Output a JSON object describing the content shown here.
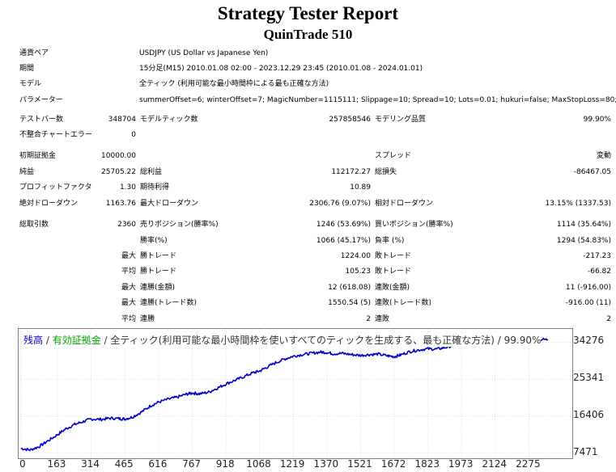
{
  "title": "Strategy Tester Report",
  "subtitle": "QuinTrade 510",
  "info": [
    {
      "label": "通貨ペア",
      "value": "USDJPY (US Dollar vs Japanese Yen)"
    },
    {
      "label": "期間",
      "value": "15分足(M15) 2010.01.08 02:00 - 2023.12.29 23:45 (2010.01.08 - 2024.01.01)"
    },
    {
      "label": "モデル",
      "value": "全ティック (利用可能な最小時間枠による最も正確な方法)"
    },
    {
      "label": "パラメーター",
      "value": "summerOffset=6; winterOffset=7; MagicNumber=1115111; Slippage=10; Spread=10; Lots=0.01; hukuri=false; MaxStopLoss=80;"
    }
  ],
  "rows": [
    {
      "c1": "テストバー数",
      "c2": "348704",
      "c3": "モデルティック数",
      "c4": "257858546",
      "c5": "モデリング品質",
      "c6": "99.90%"
    },
    {
      "c1": "不整合チャートエラー",
      "c2": "0",
      "c3": "",
      "c4": "",
      "c5": "",
      "c6": ""
    },
    {
      "c1": "初期証拠金",
      "c2": "10000.00",
      "c3": "",
      "c4": "",
      "c5": "スプレッド",
      "c6": "変動"
    },
    {
      "c1": "純益",
      "c2": "25705.22",
      "c3": "総利益",
      "c4": "112172.27",
      "c5": "総損失",
      "c6": "-86467.05"
    },
    {
      "c1": "プロフィットファクタ",
      "c2": "1.30",
      "c3": "期待利得",
      "c4": "10.89",
      "c5": "",
      "c6": ""
    },
    {
      "c1": "絶対ドローダウン",
      "c2": "1163.76",
      "c3": "最大ドローダウン",
      "c4": "2306.76 (9.07%)",
      "c5": "相対ドローダウン",
      "c6": "13.15% (1337.53)"
    },
    {
      "c1": "総取引数",
      "c2": "2360",
      "c3": "売りポジション(勝率%)",
      "c4": "1246 (53.69%)",
      "c5": "買いポジション(勝率%)",
      "c6": "1114 (35.64%)"
    },
    {
      "c1": "",
      "c2": "",
      "c3": "勝率(%)",
      "c4": "1066 (45.17%)",
      "c5": "負率 (%)",
      "c6": "1294 (54.83%)"
    },
    {
      "c1": "",
      "c2": "最大",
      "c3": "勝トレード",
      "c4": "1224.00",
      "c5": "敗トレード",
      "c6": "-217.23"
    },
    {
      "c1": "",
      "c2": "平均",
      "c3": "勝トレード",
      "c4": "105.23",
      "c5": "敗トレード",
      "c6": "-66.82"
    },
    {
      "c1": "",
      "c2": "最大",
      "c3": "連勝(金額)",
      "c4": "12 (618.08)",
      "c5": "連敗(金額)",
      "c6": "11 (-916.00)"
    },
    {
      "c1": "",
      "c2": "最大",
      "c3": "連勝(トレード数)",
      "c4": "1550.54 (5)",
      "c5": "連敗(トレード数)",
      "c6": "-916.00 (11)"
    },
    {
      "c1": "",
      "c2": "平均",
      "c3": "連勝",
      "c4": "2",
      "c5": "連敗",
      "c6": "2"
    }
  ],
  "chart_legend": {
    "balance": "残高",
    "sep1": " / ",
    "equity": "有効証拠金",
    "sep2": " / ",
    "model": "全ティック(利用可能な最小時間枠を使いすべてのティックを生成する、最も正確な方法)",
    "sep3": " / ",
    "quality": "99.90%"
  },
  "colors": {
    "balance": "#0000c8",
    "equity": "#00a000",
    "grid": "#c8c8c8"
  },
  "chart_data": {
    "type": "line",
    "x_ticks": [
      0,
      163,
      314,
      465,
      616,
      767,
      918,
      1068,
      1219,
      1370,
      1521,
      1672,
      1823,
      1973,
      2124,
      2275
    ],
    "y_ticks": [
      7471,
      16406,
      25341,
      34276
    ],
    "xlim": [
      0,
      2375
    ],
    "ylim": [
      6200,
      37500
    ],
    "series": [
      {
        "x": [
          0,
          40,
          80,
          120,
          163,
          200,
          240,
          280,
          314,
          360,
          400,
          440,
          465,
          500,
          540,
          580,
          616,
          660,
          700,
          740,
          767,
          800,
          840,
          880,
          918,
          960,
          1000,
          1040,
          1068,
          1100,
          1140,
          1180,
          1219,
          1260,
          1300,
          1340,
          1370,
          1400,
          1440,
          1480,
          1521,
          1560,
          1600,
          1640,
          1672,
          1700,
          1740,
          1780,
          1823,
          1860,
          1900,
          1940,
          1973,
          2000,
          2040,
          2080,
          2124,
          2160,
          2200,
          2240,
          2275,
          2320,
          2360
        ],
        "y": [
          8600,
          8200,
          9000,
          10400,
          11900,
          13300,
          14400,
          15100,
          15700,
          15600,
          15900,
          15800,
          15700,
          16200,
          17400,
          18900,
          19800,
          20500,
          21000,
          21700,
          22000,
          21800,
          22200,
          23200,
          24200,
          25100,
          26000,
          26900,
          27300,
          28200,
          29300,
          30200,
          30900,
          31300,
          31600,
          31900,
          31800,
          31500,
          31600,
          31300,
          31100,
          31300,
          31400,
          31000,
          30800,
          31200,
          32000,
          32400,
          32700,
          32600,
          33000,
          33600,
          34200,
          34500,
          34300,
          34400,
          35100,
          35000,
          34600,
          35200,
          35500,
          35000,
          34900
        ]
      }
    ]
  }
}
